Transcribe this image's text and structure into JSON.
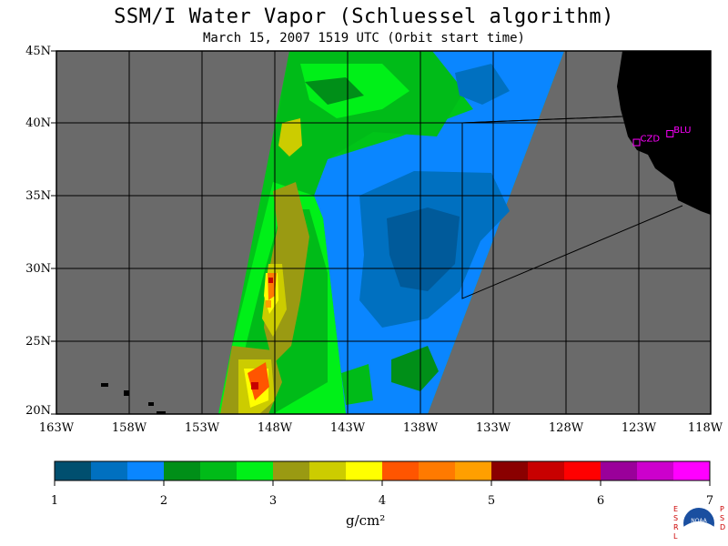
{
  "title": "SSM/I Water Vapor (Schluessel algorithm)",
  "subtitle": "March 15, 2007  1519 UTC  (Orbit start time)",
  "lat_labels": [
    "45N",
    "40N",
    "35N",
    "30N",
    "25N",
    "20N"
  ],
  "lon_labels": [
    "163W",
    "158W",
    "153W",
    "148W",
    "143W",
    "138W",
    "133W",
    "128W",
    "123W",
    "118W"
  ],
  "stations": [
    {
      "name": "CZD",
      "lon": -123.1,
      "lat": 38.7
    },
    {
      "name": "BLU",
      "lon": -120.8,
      "lat": 39.3
    }
  ],
  "colorbar": {
    "labels": [
      "1",
      "2",
      "3",
      "4",
      "5",
      "6",
      "7"
    ],
    "units": "g/cm²",
    "colors": [
      "#004f6f",
      "#0070c0",
      "#0a86ff",
      "#008f18",
      "#00bb18",
      "#00f018",
      "#9a9a12",
      "#cccc00",
      "#ffff00",
      "#ff5500",
      "#ff7a00",
      "#ff9f00",
      "#8a0000",
      "#c80000",
      "#ff0000",
      "#9a009a",
      "#cc00cc",
      "#ff00ff"
    ]
  },
  "logo": {
    "left_text": "ESRL",
    "right_text": "PSD",
    "center_text": "NOAA"
  },
  "colors": {
    "ocean_no_data": "#6a6a6a",
    "land": "#000000",
    "station_marker": "#ff00ff"
  }
}
